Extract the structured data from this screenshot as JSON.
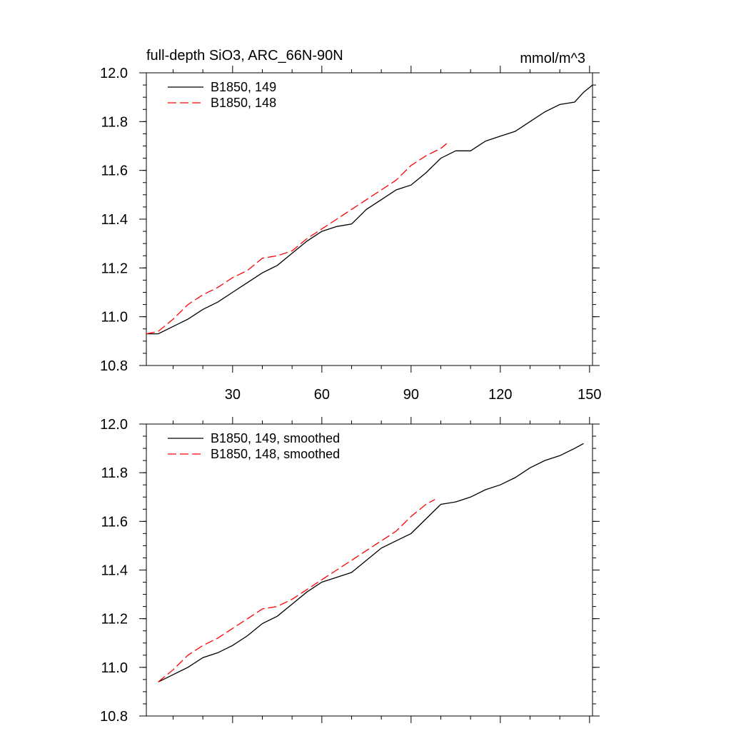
{
  "header": {
    "title": "full-depth SiO3, ARC_66N-90N",
    "units": "mmol/m^3"
  },
  "chart_data": [
    {
      "type": "line",
      "xlim": [
        1,
        151
      ],
      "ylim": [
        10.8,
        12.0
      ],
      "x_ticks": [
        30,
        60,
        90,
        120,
        150
      ],
      "x_tick_labels": [
        "30",
        "60",
        "90",
        "120",
        "150"
      ],
      "y_ticks": [
        10.8,
        11.0,
        11.2,
        11.4,
        11.6,
        11.8,
        12.0
      ],
      "y_tick_labels": [
        "10.8",
        "11.0",
        "11.2",
        "11.4",
        "11.6",
        "11.8",
        "12.0"
      ],
      "legend_position": "top-left",
      "series": [
        {
          "name": "B1850, 149",
          "color": "#000000",
          "dash": "solid",
          "x": [
            1,
            5,
            10,
            15,
            20,
            25,
            30,
            35,
            40,
            45,
            50,
            55,
            60,
            65,
            70,
            75,
            80,
            85,
            90,
            95,
            100,
            105,
            110,
            115,
            120,
            125,
            130,
            135,
            140,
            145,
            148,
            151
          ],
          "y": [
            10.93,
            10.93,
            10.96,
            10.99,
            11.03,
            11.06,
            11.1,
            11.14,
            11.18,
            11.21,
            11.26,
            11.31,
            11.35,
            11.37,
            11.38,
            11.44,
            11.48,
            11.52,
            11.54,
            11.59,
            11.65,
            11.68,
            11.68,
            11.72,
            11.74,
            11.76,
            11.8,
            11.84,
            11.87,
            11.88,
            11.92,
            11.95
          ]
        },
        {
          "name": "B1850, 148",
          "color": "#ff0000",
          "dash": "dashed",
          "x": [
            1,
            5,
            10,
            15,
            20,
            25,
            30,
            35,
            40,
            45,
            50,
            55,
            60,
            65,
            70,
            75,
            80,
            85,
            90,
            95,
            100,
            102
          ],
          "y": [
            10.93,
            10.94,
            10.99,
            11.05,
            11.09,
            11.12,
            11.16,
            11.19,
            11.24,
            11.25,
            11.27,
            11.32,
            11.36,
            11.4,
            11.44,
            11.48,
            11.52,
            11.56,
            11.62,
            11.66,
            11.69,
            11.71
          ]
        }
      ]
    },
    {
      "type": "line",
      "xlim": [
        1,
        151
      ],
      "ylim": [
        10.8,
        12.0
      ],
      "x_ticks": [
        30,
        60,
        90,
        120,
        150
      ],
      "y_ticks": [
        10.8,
        11.0,
        11.2,
        11.4,
        11.6,
        11.8,
        12.0
      ],
      "y_tick_labels": [
        "10.8",
        "11.0",
        "11.2",
        "11.4",
        "11.6",
        "11.8",
        "12.0"
      ],
      "legend_position": "top-left",
      "series": [
        {
          "name": "B1850, 149, smoothed",
          "color": "#000000",
          "dash": "solid",
          "x": [
            5,
            10,
            15,
            20,
            25,
            30,
            35,
            40,
            45,
            50,
            55,
            60,
            65,
            70,
            75,
            80,
            85,
            90,
            95,
            100,
            105,
            110,
            115,
            120,
            125,
            130,
            135,
            140,
            145,
            148
          ],
          "y": [
            10.94,
            10.97,
            11.0,
            11.04,
            11.06,
            11.09,
            11.13,
            11.18,
            11.21,
            11.26,
            11.31,
            11.35,
            11.37,
            11.39,
            11.44,
            11.49,
            11.52,
            11.55,
            11.61,
            11.67,
            11.68,
            11.7,
            11.73,
            11.75,
            11.78,
            11.82,
            11.85,
            11.87,
            11.9,
            11.92
          ]
        },
        {
          "name": "B1850, 148, smoothed",
          "color": "#ff0000",
          "dash": "dashed",
          "x": [
            5,
            10,
            15,
            20,
            25,
            30,
            35,
            40,
            45,
            50,
            55,
            60,
            65,
            70,
            75,
            80,
            85,
            90,
            95,
            98
          ],
          "y": [
            10.94,
            10.99,
            11.05,
            11.09,
            11.12,
            11.16,
            11.2,
            11.24,
            11.25,
            11.28,
            11.32,
            11.36,
            11.4,
            11.44,
            11.48,
            11.52,
            11.56,
            11.62,
            11.67,
            11.69
          ]
        }
      ]
    }
  ]
}
